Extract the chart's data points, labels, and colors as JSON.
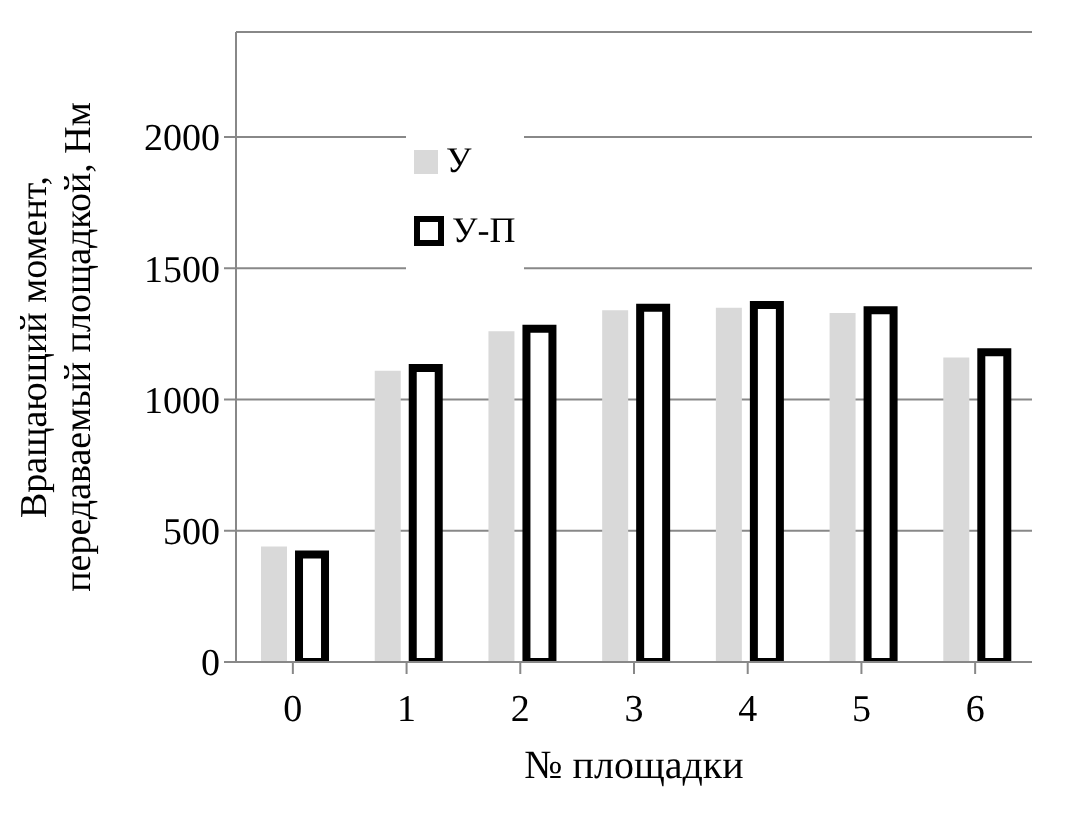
{
  "chart_data": {
    "type": "bar",
    "xlabel": "№ площадки",
    "ylabel": "Вращающий момент, передаваемый площадкой, Нм",
    "categories": [
      "0",
      "1",
      "2",
      "3",
      "4",
      "5",
      "6"
    ],
    "series": [
      {
        "name": "У",
        "color": "#d9d9d9",
        "values": [
          440,
          1110,
          1260,
          1340,
          1350,
          1330,
          1160
        ]
      },
      {
        "name": "У-П",
        "color": "#ffffff",
        "values": [
          410,
          1120,
          1270,
          1350,
          1360,
          1340,
          1180
        ]
      }
    ],
    "ylim": [
      0,
      2400
    ],
    "yticks": [
      0,
      500,
      1000,
      1500,
      2000
    ],
    "grid": "y",
    "legend": "top left"
  }
}
